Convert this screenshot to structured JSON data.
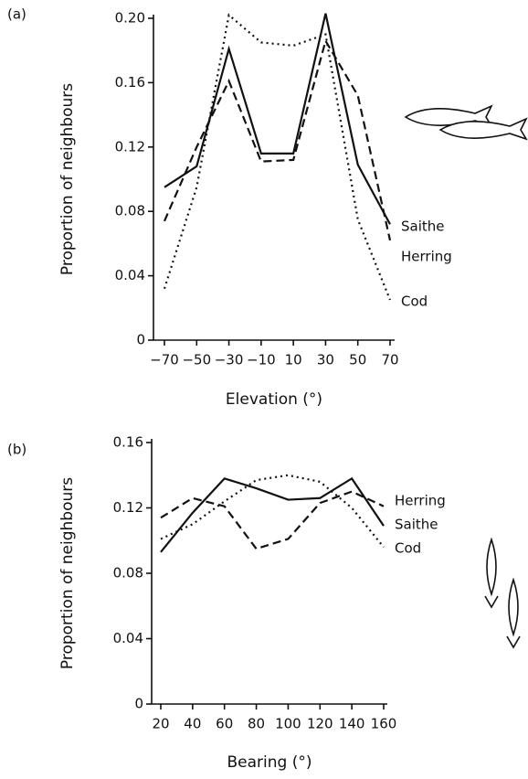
{
  "chart_data": [
    {
      "type": "line",
      "panel": "(a)",
      "xlabel": "Elevation (°)",
      "ylabel": "Proportion of neighbours",
      "x": [
        -70,
        -50,
        -30,
        -10,
        10,
        30,
        50,
        70
      ],
      "xlim": [
        -70,
        70
      ],
      "xticks": [
        {
          "value": -70,
          "label": "−70"
        },
        {
          "value": -50,
          "label": "−50"
        },
        {
          "value": -30,
          "label": "−30"
        },
        {
          "value": -10,
          "label": "−10"
        },
        10,
        30,
        50,
        70
      ],
      "ylim": [
        0,
        0.2
      ],
      "yticks": [
        0,
        0.04,
        0.08,
        0.12,
        0.16,
        {
          "value": 0.2,
          "label": "0.20"
        }
      ],
      "series": [
        {
          "name": "Saithe",
          "color": "#111111",
          "line_style": "solid",
          "values": [
            0.095,
            0.108,
            0.181,
            0.116,
            0.116,
            0.203,
            0.109,
            0.072
          ]
        },
        {
          "name": "Herring",
          "color": "#111111",
          "line_style": "dashed",
          "values": [
            0.074,
            0.12,
            0.161,
            0.111,
            0.112,
            0.186,
            0.152,
            0.062
          ]
        },
        {
          "name": "Cod",
          "color": "#111111",
          "line_style": "dotted",
          "values": [
            0.032,
            0.095,
            0.202,
            0.185,
            0.183,
            0.19,
            0.075,
            0.025
          ]
        }
      ]
    },
    {
      "type": "line",
      "panel": "(b)",
      "xlabel": "Bearing (°)",
      "ylabel": "Proportion of neighbours",
      "x": [
        20,
        40,
        60,
        80,
        100,
        120,
        140,
        160
      ],
      "xlim": [
        20,
        160
      ],
      "xticks": [
        20,
        40,
        60,
        80,
        100,
        120,
        140,
        160
      ],
      "ylim": [
        0,
        0.16
      ],
      "yticks": [
        0,
        0.04,
        0.08,
        0.12,
        0.16
      ],
      "series": [
        {
          "name": "Herring",
          "color": "#111111",
          "line_style": "dashed",
          "values": [
            0.114,
            0.126,
            0.121,
            0.095,
            0.101,
            0.123,
            0.13,
            0.121
          ]
        },
        {
          "name": "Saithe",
          "color": "#111111",
          "line_style": "solid",
          "values": [
            0.093,
            0.117,
            0.138,
            0.132,
            0.125,
            0.126,
            0.138,
            0.109
          ]
        },
        {
          "name": "Cod",
          "color": "#111111",
          "line_style": "dotted",
          "values": [
            0.101,
            0.11,
            0.124,
            0.137,
            0.14,
            0.136,
            0.12,
            0.096
          ]
        }
      ]
    }
  ]
}
